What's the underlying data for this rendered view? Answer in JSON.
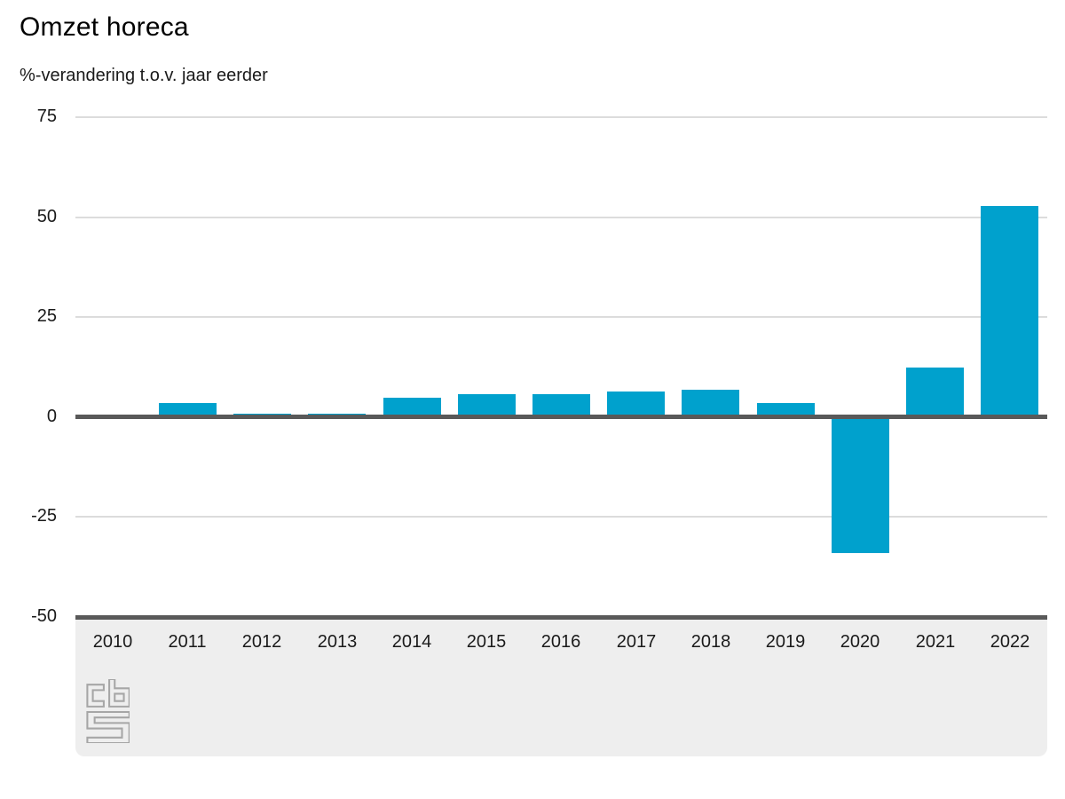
{
  "header": {
    "title": "Omzet horeca",
    "subtitle": "%-verandering t.o.v. jaar eerder"
  },
  "chart_data": {
    "type": "bar",
    "title": "Omzet horeca",
    "subtitle": "%-verandering t.o.v. jaar eerder",
    "categories": [
      "2010",
      "2011",
      "2012",
      "2013",
      "2014",
      "2015",
      "2016",
      "2017",
      "2018",
      "2019",
      "2020",
      "2021",
      "2022"
    ],
    "values": [
      0,
      3.6,
      0.9,
      0.9,
      4.9,
      5.8,
      5.7,
      6.4,
      6.8,
      3.6,
      -33.9,
      12.4,
      52.9
    ],
    "xlabel": "",
    "ylabel": "%-verandering t.o.v. jaar eerder",
    "ylim": [
      -50,
      75
    ],
    "yticks": [
      75,
      50,
      25,
      0,
      -25,
      -50
    ],
    "grid": true,
    "legend": "none",
    "bar_color": "#00a1cd",
    "axis_line_color": "#595959",
    "gridline_color": "#dcdcdc",
    "band_color": "#eeeeee",
    "logo_color": "#a6a6a6"
  },
  "footer": {
    "logo_name": "cbs-logo"
  }
}
